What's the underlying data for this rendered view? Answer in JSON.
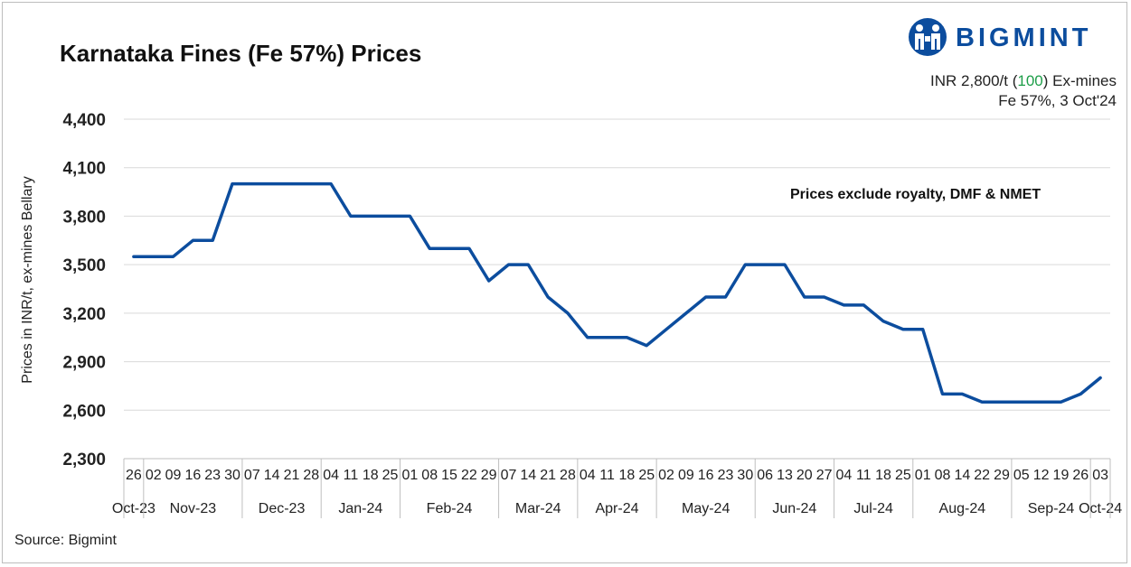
{
  "header": {
    "title": "Karnataka Fines (Fe 57%) Prices",
    "brand": "BIGMINT",
    "price_prefix": "INR 2,800/t (",
    "price_change": "100",
    "price_suffix": ") Ex-mines",
    "price_line2": "Fe 57%, 3 Oct'24"
  },
  "note": "Prices exclude royalty, DMF & NMET",
  "source": "Source: Bigmint",
  "colors": {
    "line": "#0c4d9e",
    "change_positive": "#1e9e49",
    "grid": "#d9d9d9"
  },
  "chart_data": {
    "type": "line",
    "ylabel": "Prices in INR/t, ex-mines Bellary",
    "xlabel": "",
    "ylim": [
      2300,
      4400
    ],
    "yticks": [
      2300,
      2600,
      2900,
      3200,
      3500,
      3800,
      4100,
      4400
    ],
    "ytick_labels": [
      "2,300",
      "2,600",
      "2,900",
      "3,200",
      "3,500",
      "3,800",
      "4,100",
      "4,400"
    ],
    "grid": true,
    "legend": "none",
    "day_labels": [
      "26",
      "02",
      "09",
      "16",
      "23",
      "30",
      "07",
      "14",
      "21",
      "28",
      "04",
      "11",
      "18",
      "25",
      "01",
      "08",
      "15",
      "22",
      "29",
      "07",
      "14",
      "21",
      "28",
      "04",
      "11",
      "18",
      "25",
      "02",
      "09",
      "16",
      "23",
      "30",
      "06",
      "13",
      "20",
      "27",
      "04",
      "11",
      "18",
      "25",
      "01",
      "08",
      "14",
      "22",
      "29",
      "05",
      "12",
      "19",
      "26",
      "03"
    ],
    "month_groups": [
      {
        "label": "Oct-23",
        "count": 1
      },
      {
        "label": "Nov-23",
        "count": 5
      },
      {
        "label": "Dec-23",
        "count": 4
      },
      {
        "label": "Jan-24",
        "count": 4
      },
      {
        "label": "Feb-24",
        "count": 5
      },
      {
        "label": "Mar-24",
        "count": 4
      },
      {
        "label": "Apr-24",
        "count": 4
      },
      {
        "label": "May-24",
        "count": 5
      },
      {
        "label": "Jun-24",
        "count": 4
      },
      {
        "label": "Jul-24",
        "count": 4
      },
      {
        "label": "Aug-24",
        "count": 5
      },
      {
        "label": "Sep-24",
        "count": 4
      },
      {
        "label": "Oct-24",
        "count": 1
      }
    ],
    "series": [
      {
        "values": [
          3550,
          3550,
          3550,
          3650,
          3650,
          4000,
          4000,
          4000,
          4000,
          4000,
          4000,
          3800,
          3800,
          3800,
          3800,
          3600,
          3600,
          3600,
          3400,
          3500,
          3500,
          3300,
          3200,
          3050,
          3050,
          3050,
          3000,
          3100,
          3200,
          3300,
          3300,
          3500,
          3500,
          3500,
          3300,
          3300,
          3250,
          3250,
          3150,
          3100,
          3100,
          2700,
          2700,
          2650,
          2650,
          2650,
          2650,
          2650,
          2700,
          2800
        ]
      }
    ]
  }
}
